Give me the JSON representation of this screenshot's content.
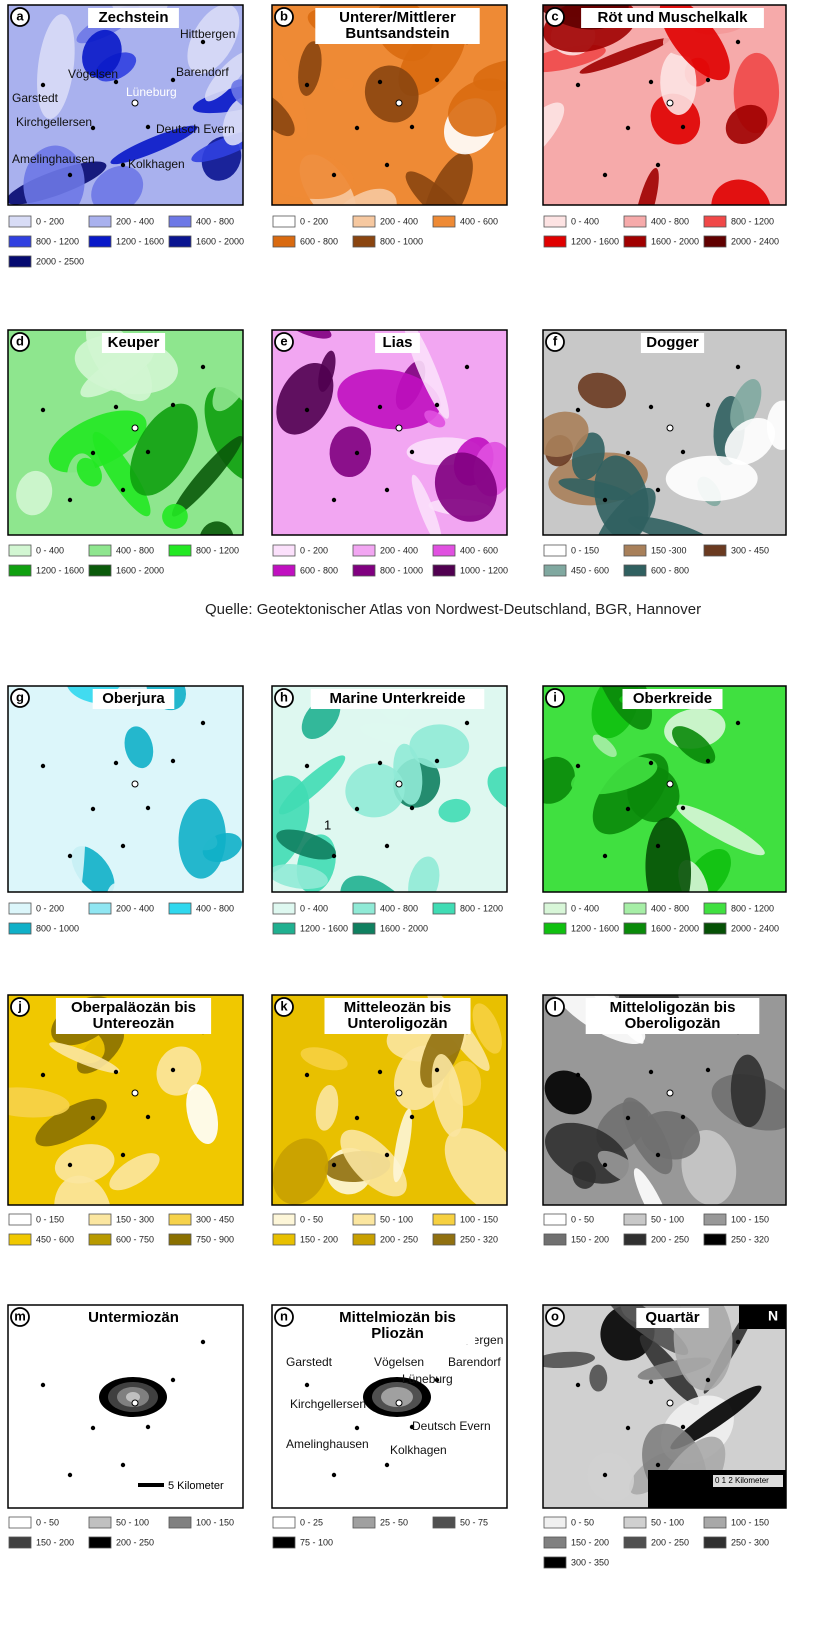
{
  "panels": [
    {
      "letter": "a",
      "title": [
        "Zechstein"
      ],
      "legend": [
        {
          "label": "0 - 200",
          "color": "#d8dcf6"
        },
        {
          "label": "200 - 400",
          "color": "#a9b1ee"
        },
        {
          "label": "400 - 800",
          "color": "#6d78e6"
        },
        {
          "label": "800 - 1200",
          "color": "#3040e0"
        },
        {
          "label": "1200 - 1600",
          "color": "#0818c8"
        },
        {
          "label": "1600 - 2000",
          "color": "#0a1490"
        },
        {
          "label": "2000 - 2500",
          "color": "#050a70"
        }
      ],
      "places": [
        "Hittbergen",
        "Barendorf",
        "Vögelsen",
        "Lüneburg",
        "Garstedt",
        "Kirchgellersen",
        "Deutsch Evern",
        "Amelinghausen",
        "Kolkhagen"
      ]
    },
    {
      "letter": "b",
      "title": [
        "Unterer/Mittlerer",
        "Buntsandstein"
      ],
      "legend": [
        {
          "label": "0 - 200",
          "color": "#ffffff"
        },
        {
          "label": "200 - 400",
          "color": "#f6c8a0"
        },
        {
          "label": "400 - 600",
          "color": "#ee8a35"
        },
        {
          "label": "600 - 800",
          "color": "#d96a10"
        },
        {
          "label": "800 - 1000",
          "color": "#8a4510"
        }
      ]
    },
    {
      "letter": "c",
      "title": [
        "Röt und Muschelkalk"
      ],
      "legend": [
        {
          "label": "0 - 400",
          "color": "#fde3e3"
        },
        {
          "label": "400 - 800",
          "color": "#f6aaaa"
        },
        {
          "label": "800 - 1200",
          "color": "#f04848"
        },
        {
          "label": "1200 - 1600",
          "color": "#e00000"
        },
        {
          "label": "1600 - 2000",
          "color": "#a00000"
        },
        {
          "label": "2000 - 2400",
          "color": "#600000"
        }
      ]
    },
    {
      "letter": "d",
      "title": [
        "Keuper"
      ],
      "legend": [
        {
          "label": "0 - 400",
          "color": "#d2f6d2"
        },
        {
          "label": "400 - 800",
          "color": "#8ee68e"
        },
        {
          "label": "800 - 1200",
          "color": "#22e822"
        },
        {
          "label": "1200 - 1600",
          "color": "#10a010"
        },
        {
          "label": "1600 - 2000",
          "color": "#0a5a0a"
        }
      ]
    },
    {
      "letter": "e",
      "title": [
        "Lias"
      ],
      "legend": [
        {
          "label": "0 - 200",
          "color": "#fbe0fb"
        },
        {
          "label": "200 - 400",
          "color": "#f2a6f2"
        },
        {
          "label": "400 - 600",
          "color": "#e050e0"
        },
        {
          "label": "600 - 800",
          "color": "#c010c0"
        },
        {
          "label": "800 - 1000",
          "color": "#800080"
        },
        {
          "label": "1000 - 1200",
          "color": "#500050"
        }
      ]
    },
    {
      "letter": "f",
      "title": [
        "Dogger"
      ],
      "legend": [
        {
          "label": "0 - 150",
          "color": "#ffffff"
        },
        {
          "label": "150 -300",
          "color": "#a8805a"
        },
        {
          "label": "300 - 450",
          "color": "#6a3a20"
        },
        {
          "label": "450 - 600",
          "color": "#80a8a0"
        },
        {
          "label": "600 - 800",
          "color": "#306060"
        }
      ]
    },
    {
      "letter": "g",
      "title": [
        "Oberjura"
      ],
      "legend": [
        {
          "label": "0 - 200",
          "color": "#dcf6fa"
        },
        {
          "label": "200 - 400",
          "color": "#90e6f2"
        },
        {
          "label": "400 - 800",
          "color": "#30d8ee"
        },
        {
          "label": "800 - 1000",
          "color": "#10b0c8"
        }
      ]
    },
    {
      "letter": "h",
      "title": [
        "Marine Unterkreide"
      ],
      "legend": [
        {
          "label": "0 - 400",
          "color": "#def8f0"
        },
        {
          "label": "400 - 800",
          "color": "#90ead6"
        },
        {
          "label": "800 - 1200",
          "color": "#40dcb4"
        },
        {
          "label": "1200 - 1600",
          "color": "#20b090"
        },
        {
          "label": "1600 - 2000",
          "color": "#108060"
        }
      ],
      "notes": [
        "1"
      ]
    },
    {
      "letter": "i",
      "title": [
        "Oberkreide"
      ],
      "legend": [
        {
          "label": "0 - 400",
          "color": "#d8f6d8"
        },
        {
          "label": "400 - 800",
          "color": "#a6eea6"
        },
        {
          "label": "800 - 1200",
          "color": "#40e040"
        },
        {
          "label": "1200 - 1600",
          "color": "#10c010"
        },
        {
          "label": "1600 - 2000",
          "color": "#0a8a0a"
        },
        {
          "label": "2000 - 2400",
          "color": "#055005"
        }
      ]
    },
    {
      "letter": "j",
      "title": [
        "Oberpaläozän bis",
        "Untereozän"
      ],
      "legend": [
        {
          "label": "0 - 150",
          "color": "#ffffff"
        },
        {
          "label": "150 - 300",
          "color": "#fbe6a0"
        },
        {
          "label": "300 - 450",
          "color": "#f6d24a"
        },
        {
          "label": "450 - 600",
          "color": "#f0c800"
        },
        {
          "label": "600 - 750",
          "color": "#b89a00"
        },
        {
          "label": "750 - 900",
          "color": "#8a7000"
        }
      ]
    },
    {
      "letter": "k",
      "title": [
        "Mitteleozän bis",
        "Unteroligozän"
      ],
      "legend": [
        {
          "label": "0 - 50",
          "color": "#fdf6d8"
        },
        {
          "label": "50 - 100",
          "color": "#fbe6a0"
        },
        {
          "label": "100 - 150",
          "color": "#f6d040"
        },
        {
          "label": "150 - 200",
          "color": "#e8c000"
        },
        {
          "label": "200 - 250",
          "color": "#c8a000"
        },
        {
          "label": "250 - 320",
          "color": "#907010"
        }
      ]
    },
    {
      "letter": "l",
      "title": [
        "Mitteloligozän bis",
        "Oberoligozän"
      ],
      "legend": [
        {
          "label": "0 - 50",
          "color": "#ffffff"
        },
        {
          "label": "50 - 100",
          "color": "#c8c8c8"
        },
        {
          "label": "100 - 150",
          "color": "#989898"
        },
        {
          "label": "150 - 200",
          "color": "#707070"
        },
        {
          "label": "200 - 250",
          "color": "#303030"
        },
        {
          "label": "250 - 320",
          "color": "#000000"
        }
      ]
    },
    {
      "letter": "m",
      "title": [
        "Untermiozän"
      ],
      "legend": [
        {
          "label": "0 - 50",
          "color": "#ffffff"
        },
        {
          "label": "50 - 100",
          "color": "#c0c0c0"
        },
        {
          "label": "100 - 150",
          "color": "#808080"
        },
        {
          "label": "150 - 200",
          "color": "#404040"
        },
        {
          "label": "200 - 250",
          "color": "#000000"
        }
      ],
      "notes": [
        "5 Kilometer"
      ]
    },
    {
      "letter": "n",
      "title": [
        "Mittelmiozän bis",
        "Pliozän"
      ],
      "legend": [
        {
          "label": "0 - 25",
          "color": "#ffffff"
        },
        {
          "label": "25 - 50",
          "color": "#a0a0a0"
        },
        {
          "label": "50 - 75",
          "color": "#505050"
        },
        {
          "label": "75 - 100",
          "color": "#000000"
        }
      ],
      "places": [
        "Hittbergen",
        "Barendorf",
        "Vögelsen",
        "Lüneburg",
        "Garstedt",
        "Kirchgellersen",
        "Deutsch Evern",
        "Amelinghausen",
        "Kolkhagen"
      ]
    },
    {
      "letter": "o",
      "title": [
        "Quartär"
      ],
      "legend": [
        {
          "label": "0 - 50",
          "color": "#f0f0f0"
        },
        {
          "label": "50 - 100",
          "color": "#d0d0d0"
        },
        {
          "label": "100 - 150",
          "color": "#a8a8a8"
        },
        {
          "label": "150 - 200",
          "color": "#808080"
        },
        {
          "label": "200 - 250",
          "color": "#505050"
        },
        {
          "label": "250 - 300",
          "color": "#303030"
        },
        {
          "label": "300 - 350",
          "color": "#000000"
        }
      ],
      "notes": [
        "N",
        "0 1 2 Kilometer"
      ]
    }
  ],
  "source": "Quelle: Geotektonischer Atlas von Nordwest-Deutschland, BGR, Hannover"
}
